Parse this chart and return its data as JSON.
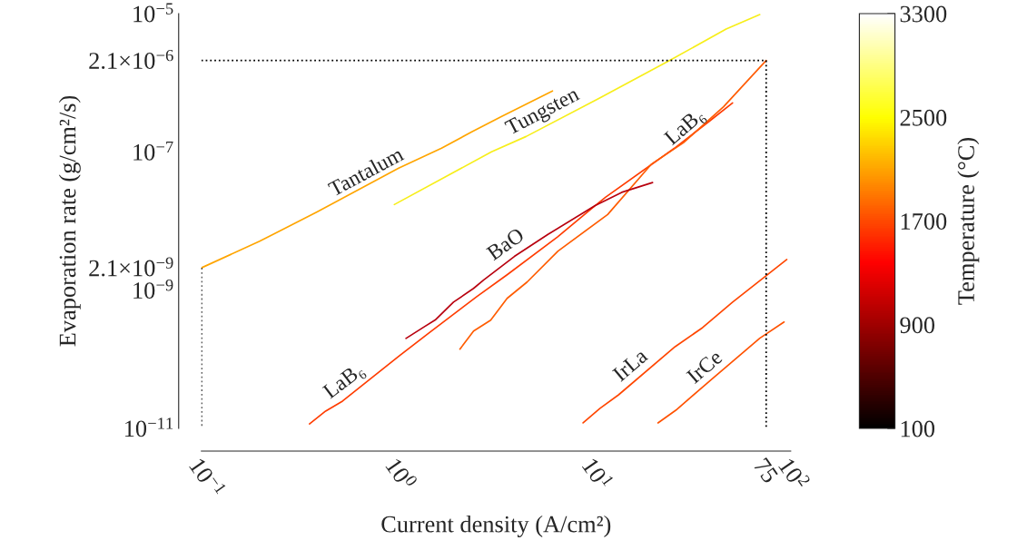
{
  "chart_data": {
    "type": "line",
    "xlabel": "Current density (A/cm²)",
    "ylabel": "Evaporation rate (g/cm²/s)",
    "clabel": "Temperature (°C)",
    "log": "xy",
    "grid": false,
    "xlim": [
      0.1,
      100
    ],
    "ylim": [
      1e-11,
      1e-05
    ],
    "xticks": [
      {
        "value": 0.1,
        "label": "10$^{−1}$"
      },
      {
        "value": 1,
        "label": "10$^{0}$"
      },
      {
        "value": 10,
        "label": "10$^{1}$"
      },
      75,
      {
        "value": 100,
        "label": "10$^{2}$"
      }
    ],
    "yticks": [
      {
        "value": 1e-11,
        "label": "10$^{−11}$"
      },
      {
        "value": 1e-09,
        "label": "10$^{−9}$"
      },
      {
        "value": 2.1e-09,
        "label": "2.1×10$^{−9}$"
      },
      {
        "value": 1e-07,
        "label": "10$^{−7}$"
      },
      {
        "value": 2.1e-06,
        "label": "2.1×10$^{−6}$"
      },
      {
        "value": 1e-05,
        "label": "10$^{−5}$"
      }
    ],
    "clim": [
      100,
      3300
    ],
    "cticks": [
      100,
      900,
      1700,
      2500,
      3300
    ],
    "series": [
      {
        "color": "#ffa500",
        "x": [
          0.1,
          0.198,
          0.388,
          1.01,
          1.67,
          2.38,
          3.38,
          6.13
        ],
        "values": [
          2.1e-09,
          5.1e-09,
          1.35e-08,
          5.8e-08,
          1.13e-07,
          1.95e-07,
          3.26e-07,
          7.6e-07
        ]
      },
      {
        "color": "#f7ee1a",
        "x": [
          0.96,
          3.0,
          4.5,
          10.6,
          24.0,
          46.9,
          69.6
        ],
        "values": [
          1.73e-08,
          1e-07,
          1.67e-07,
          5.97e-07,
          2.07e-06,
          5.97e-06,
          9.7e-06
        ]
      },
      {
        "color": "#ff3c00",
        "x": [
          0.355,
          0.429,
          0.523,
          1.02,
          1.46,
          2.53,
          3.6,
          6.54,
          10.1,
          11.4,
          25.6,
          38.7,
          50.6
        ],
        "values": [
          1.16e-11,
          1.78e-11,
          2.48e-11,
          1.13e-10,
          2.48e-10,
          8.1e-10,
          1.67e-09,
          5.97e-09,
          1.67e-08,
          2.2e-08,
          1.13e-07,
          2.8e-07,
          5.1e-07
        ]
      },
      {
        "color": "#ff5c00",
        "x": [
          2.07,
          2.43,
          2.97,
          3.6,
          4.55,
          6.54,
          11.7,
          19.6,
          28.4,
          45.5,
          75
        ],
        "values": [
          1.4e-10,
          2.56e-10,
          3.68e-10,
          7.6e-10,
          1.31e-09,
          3.68e-09,
          1.24e-08,
          6.7e-08,
          1.35e-07,
          4.5e-07,
          2.1e-06
        ]
      },
      {
        "color": "#b8000e",
        "x": [
          1.1,
          1.35,
          1.55,
          1.92,
          2.43,
          2.73,
          3.92,
          5.81,
          10.1,
          13.8,
          19.8
        ],
        "values": [
          2e-10,
          2.9e-10,
          3.7e-10,
          6.7e-10,
          1.06e-09,
          1.4e-09,
          3.07e-09,
          6.4e-09,
          1.67e-08,
          2.6e-08,
          3.6e-08
        ]
      },
      {
        "color": "#ff4600",
        "x": [
          8.77,
          10.7,
          13.3,
          25.8,
          35.6,
          50.6,
          95.5
        ],
        "values": [
          1.2e-11,
          1.95e-11,
          3.06e-11,
          1.52e-10,
          2.87e-10,
          6.7e-10,
          2.77e-09
        ]
      },
      {
        "color": "#ff5200",
        "x": [
          21.1,
          26.0,
          40.1,
          69.6,
          92.5
        ],
        "values": [
          1.2e-11,
          1.83e-11,
          5.3e-11,
          2.02e-10,
          3.46e-10
        ]
      },
      {
        "color": "#000000",
        "line_style": "dotted",
        "x": [
          0.1,
          75,
          75
        ],
        "values": [
          2.1e-06,
          2.1e-06,
          1e-11
        ]
      },
      {
        "color": "#000000",
        "line_style": "dotted",
        "x": [
          0.1,
          0.1
        ],
        "values": [
          2.1e-09,
          1e-11
        ]
      }
    ],
    "annotations": [
      {
        "text": "Tantalum",
        "x": 0.75,
        "y": 3.3e-08
      },
      {
        "text": "Tungsten",
        "x": 5.9,
        "y": 2.5e-07
      },
      {
        "text": "LaB₆",
        "x": 0.59,
        "y": 3.3e-11
      },
      {
        "text": "LaB₆",
        "x": 32.3,
        "y": 1.6e-07
      },
      {
        "text": "BaO",
        "x": 3.92,
        "y": 3.07e-09
      },
      {
        "text": "IrLa",
        "x": 17.1,
        "y": 5.6e-11
      },
      {
        "text": "IrCe",
        "x": 40.9,
        "y": 5.3e-11
      }
    ]
  }
}
